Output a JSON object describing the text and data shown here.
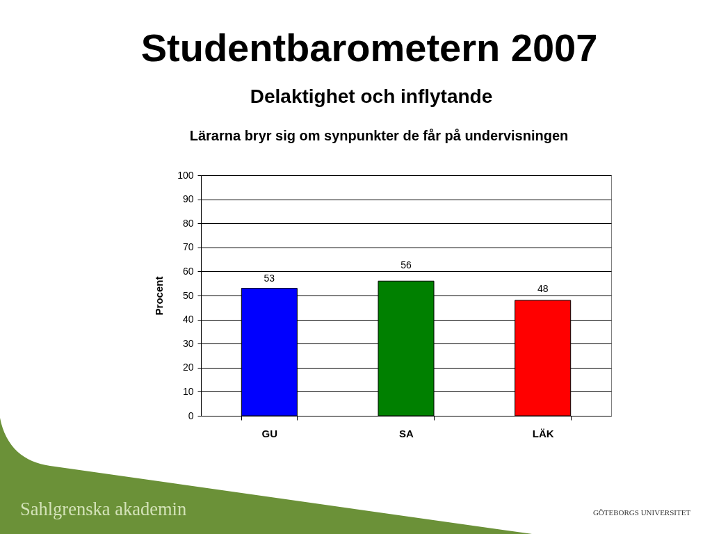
{
  "chart_data": {
    "type": "bar",
    "title": "Studentbarometern 2007",
    "subtitle": "Delaktighet och inflytande",
    "ylabel": "Procent",
    "categories": [
      "GU",
      "SA",
      "LÄK"
    ],
    "values": [
      53,
      56,
      48
    ],
    "colors": [
      "#0000ff",
      "#008000",
      "#ff0000"
    ],
    "ylim": [
      0,
      100
    ],
    "yticks": [
      0,
      10,
      20,
      30,
      40,
      50,
      60,
      70,
      80,
      90,
      100
    ],
    "grid": "y",
    "data_labels": true,
    "annotations": [
      "Lärarna bryr sig om synpunkter de får på undervisningen",
      "Sahlgrenska akademin",
      "GÖTEBORGS UNIVERSITET"
    ]
  }
}
